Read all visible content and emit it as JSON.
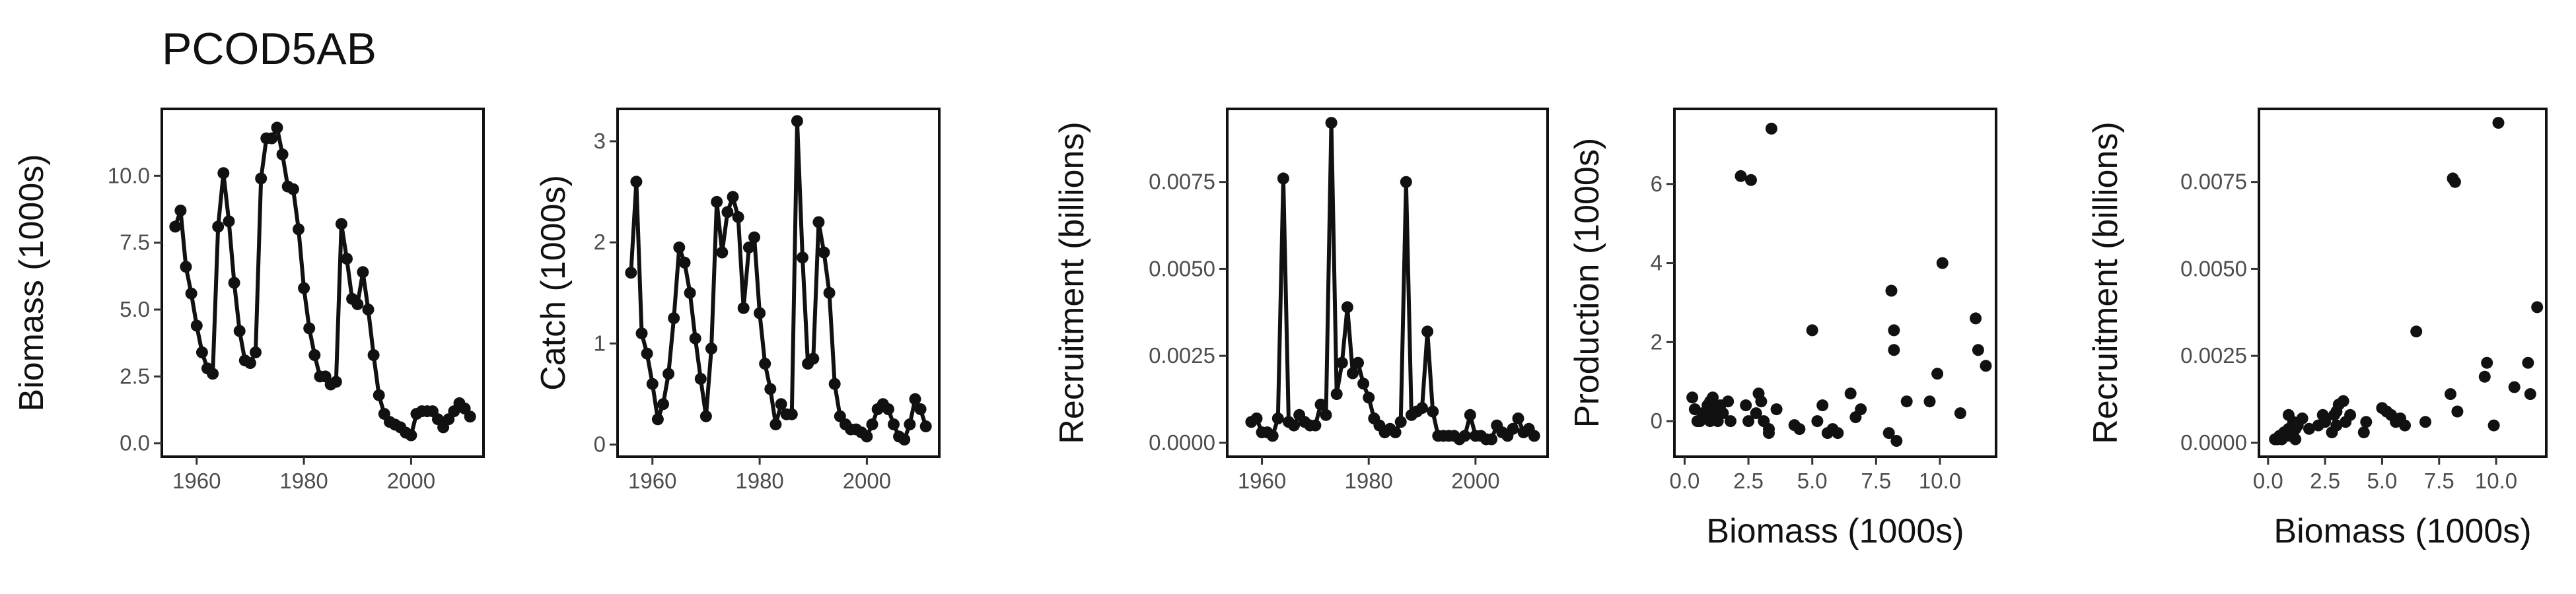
{
  "title": "PCOD5AB",
  "colors": {
    "ink": "#111111",
    "tick_text": "#4d4d4d",
    "background": "#ffffff"
  },
  "chart_data": [
    {
      "type": "line",
      "ylabel": "Biomass (1000s)",
      "xlabel": "",
      "xlim": [
        1953.5,
        2013.5
      ],
      "ylim": [
        -0.5,
        12.5
      ],
      "xticks": [
        1960,
        1980,
        2000
      ],
      "xtick_labels": [
        "1960",
        "1980",
        "2000"
      ],
      "yticks": [
        0,
        2.5,
        5,
        7.5,
        10
      ],
      "ytick_labels": [
        "0.0",
        "2.5",
        "5.0",
        "7.5",
        "10.0"
      ],
      "x": [
        1956,
        1957,
        1958,
        1959,
        1960,
        1961,
        1962,
        1963,
        1964,
        1965,
        1966,
        1967,
        1968,
        1969,
        1970,
        1971,
        1972,
        1973,
        1974,
        1975,
        1976,
        1977,
        1978,
        1979,
        1980,
        1981,
        1982,
        1983,
        1984,
        1985,
        1986,
        1987,
        1988,
        1989,
        1990,
        1991,
        1992,
        1993,
        1994,
        1995,
        1996,
        1997,
        1998,
        1999,
        2000,
        2001,
        2002,
        2003,
        2004,
        2005,
        2006,
        2007,
        2008,
        2009,
        2010,
        2011
      ],
      "y": [
        8.1,
        8.7,
        6.6,
        5.6,
        4.4,
        3.4,
        2.8,
        2.6,
        8.1,
        10.1,
        8.3,
        6.0,
        4.2,
        3.1,
        3.0,
        3.4,
        9.9,
        11.4,
        11.4,
        11.8,
        10.8,
        9.6,
        9.5,
        8.0,
        5.8,
        4.3,
        3.3,
        2.5,
        2.5,
        2.2,
        2.3,
        8.2,
        6.9,
        5.4,
        5.2,
        6.4,
        5.0,
        3.3,
        1.8,
        1.1,
        0.8,
        0.7,
        0.6,
        0.4,
        0.3,
        1.1,
        1.2,
        1.2,
        1.2,
        0.9,
        0.6,
        0.9,
        1.2,
        1.5,
        1.3,
        1.0
      ]
    },
    {
      "type": "line",
      "ylabel": "Catch (1000s)",
      "xlabel": "",
      "xlim": [
        1953.5,
        2013.5
      ],
      "ylim": [
        -0.12,
        3.32
      ],
      "xticks": [
        1960,
        1980,
        2000
      ],
      "xtick_labels": [
        "1960",
        "1980",
        "2000"
      ],
      "yticks": [
        0,
        1,
        2,
        3
      ],
      "ytick_labels": [
        "0",
        "1",
        "2",
        "3"
      ],
      "x": [
        1956,
        1957,
        1958,
        1959,
        1960,
        1961,
        1962,
        1963,
        1964,
        1965,
        1966,
        1967,
        1968,
        1969,
        1970,
        1971,
        1972,
        1973,
        1974,
        1975,
        1976,
        1977,
        1978,
        1979,
        1980,
        1981,
        1982,
        1983,
        1984,
        1985,
        1986,
        1987,
        1988,
        1989,
        1990,
        1991,
        1992,
        1993,
        1994,
        1995,
        1996,
        1997,
        1998,
        1999,
        2000,
        2001,
        2002,
        2003,
        2004,
        2005,
        2006,
        2007,
        2008,
        2009,
        2010,
        2011
      ],
      "y": [
        1.7,
        2.6,
        1.1,
        0.9,
        0.6,
        0.25,
        0.4,
        0.7,
        1.25,
        1.95,
        1.8,
        1.5,
        1.05,
        0.65,
        0.28,
        0.95,
        2.4,
        1.9,
        2.3,
        2.45,
        2.25,
        1.35,
        1.95,
        2.05,
        1.3,
        0.8,
        0.55,
        0.2,
        0.4,
        0.3,
        0.3,
        3.2,
        1.85,
        0.8,
        0.85,
        2.2,
        1.9,
        1.5,
        0.6,
        0.28,
        0.2,
        0.15,
        0.15,
        0.12,
        0.08,
        0.2,
        0.35,
        0.4,
        0.35,
        0.2,
        0.08,
        0.05,
        0.2,
        0.45,
        0.35,
        0.18
      ]
    },
    {
      "type": "line",
      "ylabel": "Recruitment (billions)",
      "xlabel": "",
      "xlim": [
        1953.5,
        2013.5
      ],
      "ylim": [
        -0.0004,
        0.0096
      ],
      "xticks": [
        1960,
        1980,
        2000
      ],
      "xtick_labels": [
        "1960",
        "1980",
        "2000"
      ],
      "yticks": [
        0,
        0.0025,
        0.005,
        0.0075
      ],
      "ytick_labels": [
        "0.0000",
        "0.0025",
        "0.0050",
        "0.0075"
      ],
      "x": [
        1958,
        1959,
        1960,
        1961,
        1962,
        1963,
        1964,
        1965,
        1966,
        1967,
        1968,
        1969,
        1970,
        1971,
        1972,
        1973,
        1974,
        1975,
        1976,
        1977,
        1978,
        1979,
        1980,
        1981,
        1982,
        1983,
        1984,
        1985,
        1986,
        1987,
        1988,
        1989,
        1990,
        1991,
        1992,
        1993,
        1994,
        1995,
        1996,
        1997,
        1998,
        1999,
        2000,
        2001,
        2002,
        2003,
        2004,
        2005,
        2006,
        2007,
        2008,
        2009,
        2010,
        2011
      ],
      "y": [
        0.0006,
        0.0007,
        0.0003,
        0.0003,
        0.0002,
        0.0007,
        0.0076,
        0.0006,
        0.0005,
        0.0008,
        0.0006,
        0.0005,
        0.0005,
        0.0011,
        0.0008,
        0.0092,
        0.0014,
        0.0023,
        0.0039,
        0.002,
        0.0023,
        0.0017,
        0.0013,
        0.0007,
        0.0005,
        0.0003,
        0.0004,
        0.0003,
        0.0006,
        0.0075,
        0.0008,
        0.0009,
        0.001,
        0.0032,
        0.0009,
        0.0002,
        0.0002,
        0.0002,
        0.0002,
        0.0001,
        0.0002,
        0.0008,
        0.0002,
        0.0002,
        0.0001,
        0.0001,
        0.0005,
        0.0003,
        0.0002,
        0.0004,
        0.0007,
        0.0003,
        0.0004,
        0.0002
      ]
    },
    {
      "type": "scatter",
      "ylabel": "Production (1000s)",
      "xlabel": "Biomass (1000s)",
      "xlim": [
        -0.4,
        12.2
      ],
      "ylim": [
        -0.9,
        7.9
      ],
      "xticks": [
        0,
        2.5,
        5,
        7.5,
        10
      ],
      "xtick_labels": [
        "0.0",
        "2.5",
        "5.0",
        "7.5",
        "10.0"
      ],
      "yticks": [
        0,
        2,
        4,
        6
      ],
      "ytick_labels": [
        "0",
        "2",
        "4",
        "6"
      ],
      "x": [
        0.3,
        0.5,
        0.4,
        0.6,
        0.7,
        0.8,
        0.9,
        1.0,
        1.0,
        1.1,
        1.1,
        1.2,
        1.2,
        1.3,
        1.4,
        1.5,
        1.8,
        2.2,
        2.4,
        2.6,
        2.8,
        2.9,
        3.0,
        3.1,
        3.3,
        3.4,
        3.6,
        4.3,
        4.5,
        5.0,
        5.2,
        5.4,
        5.6,
        5.8,
        6.0,
        6.5,
        6.7,
        6.9,
        8.0,
        8.1,
        8.2,
        8.2,
        8.3,
        8.7,
        9.6,
        9.9,
        10.1,
        10.8,
        11.4,
        11.5,
        11.8,
        1.0,
        1.7,
        2.5,
        3.3
      ],
      "y": [
        0.6,
        0.0,
        0.3,
        0.0,
        0.2,
        0.1,
        0.4,
        0.5,
        0.0,
        0.3,
        0.6,
        0.1,
        0.2,
        0.0,
        0.4,
        0.2,
        0.0,
        6.2,
        0.4,
        6.1,
        0.2,
        0.7,
        0.5,
        0.0,
        -0.2,
        7.4,
        0.3,
        -0.1,
        -0.2,
        2.3,
        0.0,
        0.4,
        -0.3,
        -0.2,
        -0.3,
        0.7,
        0.1,
        0.3,
        -0.3,
        3.3,
        2.3,
        1.8,
        -0.5,
        0.5,
        0.5,
        1.2,
        4.0,
        0.2,
        2.6,
        1.8,
        1.4,
        0.3,
        0.5,
        0.0,
        -0.3
      ]
    },
    {
      "type": "scatter",
      "ylabel": "Recruitment (billions)",
      "xlabel": "Biomass (1000s)",
      "xlim": [
        -0.4,
        12.2
      ],
      "ylim": [
        -0.0004,
        0.0096
      ],
      "xticks": [
        0,
        2.5,
        5,
        7.5,
        10
      ],
      "xtick_labels": [
        "0.0",
        "2.5",
        "5.0",
        "7.5",
        "10.0"
      ],
      "yticks": [
        0,
        0.0025,
        0.005,
        0.0075
      ],
      "ytick_labels": [
        "0.0000",
        "0.0025",
        "0.0050",
        "0.0075"
      ],
      "x": [
        0.3,
        0.4,
        0.5,
        0.6,
        0.7,
        0.8,
        0.9,
        0.9,
        1.0,
        1.1,
        1.1,
        1.2,
        1.2,
        1.3,
        1.5,
        1.8,
        2.2,
        2.4,
        2.5,
        2.5,
        2.8,
        2.9,
        3.0,
        3.0,
        3.1,
        3.3,
        3.4,
        3.6,
        4.2,
        4.3,
        5.0,
        5.2,
        5.4,
        5.6,
        5.8,
        6.0,
        6.5,
        6.9,
        8.0,
        8.1,
        8.2,
        8.3,
        9.5,
        9.6,
        9.9,
        10.1,
        10.8,
        11.4,
        11.5,
        11.8
      ],
      "y": [
        0.0001,
        0.0001,
        0.0002,
        0.0001,
        0.0003,
        0.0002,
        0.0004,
        0.0008,
        0.0002,
        0.0003,
        0.0006,
        0.0001,
        0.0004,
        0.0005,
        0.0007,
        0.0004,
        0.0005,
        0.0008,
        0.0006,
        0.0007,
        0.0003,
        0.0008,
        0.0009,
        0.0005,
        0.0011,
        0.0012,
        0.0006,
        0.0008,
        0.0003,
        0.0006,
        0.001,
        0.0009,
        0.0008,
        0.0006,
        0.0007,
        0.0005,
        0.0032,
        0.0006,
        0.0014,
        0.0076,
        0.0075,
        0.0009,
        0.0019,
        0.0023,
        0.0005,
        0.0092,
        0.0016,
        0.0023,
        0.0014,
        0.0039
      ]
    }
  ]
}
